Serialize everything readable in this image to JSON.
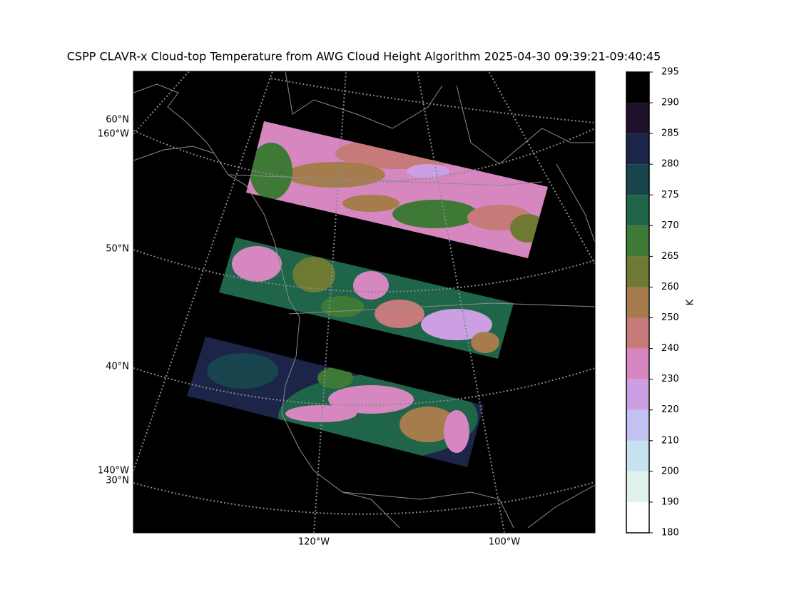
{
  "chart_data": {
    "type": "map",
    "title": "CSPP CLAVR-x Cloud-top Temperature from AWG Cloud Height Algorithm 2025-04-30 09:39:21-09:40:45",
    "left_labels": [
      "60°N",
      "160°W",
      "50°N",
      "40°N",
      "140°W",
      "30°N"
    ],
    "bottom_labels": [
      "120°W",
      "100°W"
    ],
    "colorbar": {
      "label": "K",
      "spacing": "uniform",
      "ticks": [
        180,
        190,
        200,
        210,
        220,
        230,
        240,
        250,
        260,
        265,
        270,
        275,
        280,
        285,
        290,
        295
      ],
      "colors": [
        "#ffffff",
        "#dff3ec",
        "#c6e2f0",
        "#c3c3f3",
        "#cc9fe3",
        "#d687c0",
        "#c77a7a",
        "#a67c4d",
        "#6e7a31",
        "#3e7a35",
        "#1e654a",
        "#17444d",
        "#1c2547",
        "#1d1129",
        "#000000"
      ]
    }
  }
}
